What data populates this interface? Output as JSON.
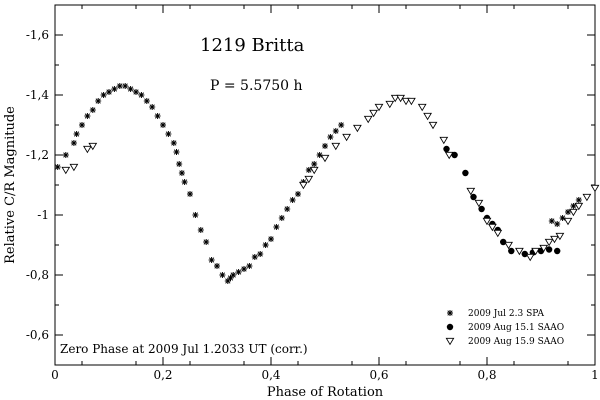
{
  "chart_data": {
    "type": "scatter",
    "title": "1219 Britta",
    "period_label": "P = 5.5750 h",
    "zero_phase_note": "Zero Phase at 2009 Jul 1.2033 UT (corr.)",
    "xlabel": "Phase of Rotation",
    "ylabel": "Relative C/R Magnitude",
    "xlim": [
      0,
      1
    ],
    "ylim": [
      -0.5,
      -1.7
    ],
    "y_inverted": true,
    "grid": false,
    "legend_position": "bottom-right",
    "x_ticks": [
      {
        "value": 0,
        "label": "0"
      },
      {
        "value": 0.2,
        "label": "0,2"
      },
      {
        "value": 0.4,
        "label": "0,4"
      },
      {
        "value": 0.6,
        "label": "0,6"
      },
      {
        "value": 0.8,
        "label": "0,8"
      },
      {
        "value": 1.0,
        "label": "1"
      }
    ],
    "y_ticks": [
      {
        "value": -1.6,
        "label": "-1,6"
      },
      {
        "value": -1.4,
        "label": "-1,4"
      },
      {
        "value": -1.2,
        "label": "-1,2"
      },
      {
        "value": -1.0,
        "label": "-1"
      },
      {
        "value": -0.8,
        "label": "-0,8"
      },
      {
        "value": -0.6,
        "label": "-0,6"
      }
    ],
    "series": [
      {
        "name": "2009 Jul 2.3 SPA",
        "marker": "asterisk",
        "x": [
          0.005,
          0.02,
          0.035,
          0.04,
          0.05,
          0.06,
          0.07,
          0.08,
          0.09,
          0.1,
          0.11,
          0.12,
          0.13,
          0.14,
          0.15,
          0.16,
          0.17,
          0.18,
          0.19,
          0.2,
          0.21,
          0.22,
          0.225,
          0.23,
          0.235,
          0.24,
          0.25,
          0.26,
          0.27,
          0.28,
          0.29,
          0.3,
          0.31,
          0.32,
          0.325,
          0.33,
          0.34,
          0.35,
          0.36,
          0.37,
          0.38,
          0.39,
          0.4,
          0.41,
          0.42,
          0.43,
          0.44,
          0.45,
          0.46,
          0.47,
          0.48,
          0.49,
          0.5,
          0.51,
          0.52,
          0.53,
          0.92,
          0.93,
          0.94,
          0.95,
          0.96,
          0.97
        ],
        "y": [
          -1.16,
          -1.2,
          -1.24,
          -1.27,
          -1.3,
          -1.33,
          -1.35,
          -1.38,
          -1.4,
          -1.41,
          -1.42,
          -1.43,
          -1.43,
          -1.42,
          -1.41,
          -1.4,
          -1.38,
          -1.36,
          -1.33,
          -1.3,
          -1.27,
          -1.24,
          -1.21,
          -1.17,
          -1.14,
          -1.11,
          -1.07,
          -1.0,
          -0.95,
          -0.91,
          -0.85,
          -0.83,
          -0.8,
          -0.78,
          -0.79,
          -0.8,
          -0.81,
          -0.82,
          -0.83,
          -0.86,
          -0.87,
          -0.9,
          -0.92,
          -0.96,
          -0.99,
          -1.02,
          -1.05,
          -1.07,
          -1.11,
          -1.15,
          -1.17,
          -1.2,
          -1.23,
          -1.26,
          -1.28,
          -1.3,
          -0.98,
          -0.97,
          -0.99,
          -1.01,
          -1.03,
          -1.05
        ]
      },
      {
        "name": "2009 Aug 15.1 SAAO",
        "marker": "filled-circle",
        "x": [
          0.725,
          0.74,
          0.76,
          0.775,
          0.79,
          0.8,
          0.81,
          0.82,
          0.83,
          0.845,
          0.87,
          0.885,
          0.9,
          0.915,
          0.93
        ],
        "y": [
          -1.22,
          -1.2,
          -1.14,
          -1.06,
          -1.02,
          -0.99,
          -0.97,
          -0.95,
          -0.91,
          -0.88,
          -0.87,
          -0.875,
          -0.88,
          -0.885,
          -0.88
        ]
      },
      {
        "name": "2009 Aug 15.9 SAAO",
        "marker": "open-triangle-down",
        "x": [
          0.02,
          0.035,
          0.06,
          0.07,
          0.46,
          0.47,
          0.48,
          0.5,
          0.52,
          0.54,
          0.56,
          0.58,
          0.59,
          0.6,
          0.62,
          0.63,
          0.64,
          0.65,
          0.66,
          0.68,
          0.69,
          0.7,
          0.72,
          0.73,
          0.77,
          0.785,
          0.8,
          0.81,
          0.82,
          0.84,
          0.86,
          0.88,
          0.89,
          0.905,
          0.915,
          0.925,
          0.935,
          0.95,
          0.96,
          0.97,
          0.985,
          1.0
        ],
        "y": [
          -1.15,
          -1.16,
          -1.22,
          -1.23,
          -1.1,
          -1.12,
          -1.15,
          -1.19,
          -1.23,
          -1.26,
          -1.29,
          -1.32,
          -1.34,
          -1.36,
          -1.37,
          -1.39,
          -1.39,
          -1.38,
          -1.38,
          -1.36,
          -1.33,
          -1.3,
          -1.25,
          -1.2,
          -1.08,
          -1.04,
          -0.98,
          -0.96,
          -0.94,
          -0.9,
          -0.88,
          -0.86,
          -0.88,
          -0.89,
          -0.91,
          -0.92,
          -0.93,
          -0.98,
          -1.01,
          -1.03,
          -1.06,
          -1.09
        ]
      }
    ]
  }
}
